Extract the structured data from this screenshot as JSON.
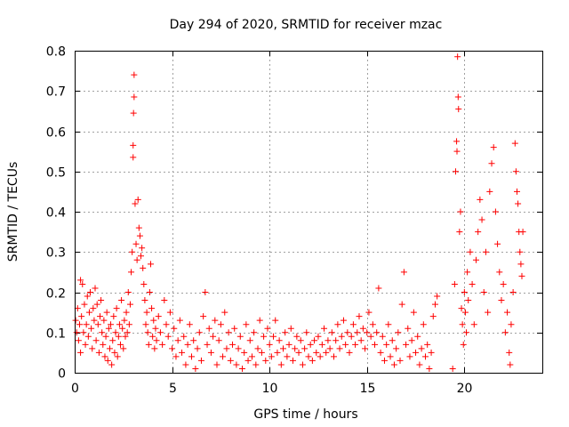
{
  "chart_data": {
    "type": "scatter",
    "title": "Day 294 of 2020, SRMTID for receiver mzac",
    "xlabel": "GPS time / hours",
    "ylabel": "SRMTID / TECUs",
    "xlim": [
      0,
      24
    ],
    "ylim": [
      0,
      0.8
    ],
    "xticks": [
      0,
      5,
      10,
      15,
      20
    ],
    "xtick_labels": [
      "0",
      "5",
      "10",
      "15",
      "20"
    ],
    "yticks": [
      0,
      0.1,
      0.2,
      0.3,
      0.4,
      0.5,
      0.6,
      0.7,
      0.8
    ],
    "ytick_labels": [
      "0",
      "0.1",
      "0.2",
      "0.3",
      "0.4",
      "0.5",
      "0.6",
      "0.7",
      "0.8"
    ],
    "grid": true,
    "marker": "+",
    "color": "#ff0000",
    "series": [
      {
        "name": "SRMTID",
        "points": [
          [
            0.05,
            0.13
          ],
          [
            0.1,
            0.1
          ],
          [
            0.15,
            0.16
          ],
          [
            0.2,
            0.08
          ],
          [
            0.25,
            0.12
          ],
          [
            0.3,
            0.05
          ],
          [
            0.3,
            0.23
          ],
          [
            0.35,
            0.14
          ],
          [
            0.4,
            0.22
          ],
          [
            0.45,
            0.1
          ],
          [
            0.5,
            0.17
          ],
          [
            0.55,
            0.07
          ],
          [
            0.6,
            0.12
          ],
          [
            0.65,
            0.19
          ],
          [
            0.7,
            0.09
          ],
          [
            0.75,
            0.15
          ],
          [
            0.8,
            0.2
          ],
          [
            0.85,
            0.11
          ],
          [
            0.9,
            0.06
          ],
          [
            0.95,
            0.16
          ],
          [
            1.0,
            0.13
          ],
          [
            1.05,
            0.21
          ],
          [
            1.1,
            0.08
          ],
          [
            1.15,
            0.17
          ],
          [
            1.2,
            0.12
          ],
          [
            1.25,
            0.05
          ],
          [
            1.3,
            0.14
          ],
          [
            1.35,
            0.18
          ],
          [
            1.4,
            0.1
          ],
          [
            1.45,
            0.07
          ],
          [
            1.5,
            0.13
          ],
          [
            1.55,
            0.04
          ],
          [
            1.6,
            0.09
          ],
          [
            1.65,
            0.15
          ],
          [
            1.7,
            0.03
          ],
          [
            1.75,
            0.11
          ],
          [
            1.8,
            0.06
          ],
          [
            1.85,
            0.12
          ],
          [
            1.9,
            0.02
          ],
          [
            1.95,
            0.08
          ],
          [
            2.0,
            0.14
          ],
          [
            2.05,
            0.05
          ],
          [
            2.1,
            0.1
          ],
          [
            2.15,
            0.16
          ],
          [
            2.2,
            0.04
          ],
          [
            2.25,
            0.09
          ],
          [
            2.3,
            0.12
          ],
          [
            2.35,
            0.07
          ],
          [
            2.4,
            0.18
          ],
          [
            2.45,
            0.11
          ],
          [
            2.5,
            0.06
          ],
          [
            2.55,
            0.13
          ],
          [
            2.6,
            0.09
          ],
          [
            2.65,
            0.15
          ],
          [
            2.7,
            0.1
          ],
          [
            2.75,
            0.2
          ],
          [
            2.8,
            0.12
          ],
          [
            2.85,
            0.17
          ],
          [
            2.9,
            0.25
          ],
          [
            2.95,
            0.3
          ],
          [
            3.0,
            0.565
          ],
          [
            3.0,
            0.535
          ],
          [
            3.02,
            0.645
          ],
          [
            3.05,
            0.685
          ],
          [
            3.05,
            0.74
          ],
          [
            3.1,
            0.42
          ],
          [
            3.15,
            0.32
          ],
          [
            3.2,
            0.28
          ],
          [
            3.25,
            0.43
          ],
          [
            3.3,
            0.36
          ],
          [
            3.35,
            0.34
          ],
          [
            3.4,
            0.29
          ],
          [
            3.45,
            0.31
          ],
          [
            3.5,
            0.26
          ],
          [
            3.55,
            0.22
          ],
          [
            3.6,
            0.18
          ],
          [
            3.65,
            0.12
          ],
          [
            3.7,
            0.15
          ],
          [
            3.75,
            0.1
          ],
          [
            3.8,
            0.07
          ],
          [
            3.85,
            0.2
          ],
          [
            3.9,
            0.27
          ],
          [
            3.95,
            0.16
          ],
          [
            4.0,
            0.09
          ],
          [
            4.05,
            0.13
          ],
          [
            4.1,
            0.06
          ],
          [
            4.15,
            0.11
          ],
          [
            4.2,
            0.08
          ],
          [
            4.3,
            0.14
          ],
          [
            4.4,
            0.1
          ],
          [
            4.5,
            0.07
          ],
          [
            4.6,
            0.18
          ],
          [
            4.7,
            0.12
          ],
          [
            4.8,
            0.09
          ],
          [
            4.9,
            0.15
          ],
          [
            5.0,
            0.06
          ],
          [
            5.1,
            0.11
          ],
          [
            5.2,
            0.04
          ],
          [
            5.3,
            0.08
          ],
          [
            5.4,
            0.13
          ],
          [
            5.5,
            0.05
          ],
          [
            5.6,
            0.09
          ],
          [
            5.7,
            0.02
          ],
          [
            5.8,
            0.07
          ],
          [
            5.9,
            0.12
          ],
          [
            6.0,
            0.04
          ],
          [
            6.1,
            0.08
          ],
          [
            6.2,
            0.01
          ],
          [
            6.3,
            0.06
          ],
          [
            6.4,
            0.1
          ],
          [
            6.5,
            0.03
          ],
          [
            6.6,
            0.14
          ],
          [
            6.7,
            0.2
          ],
          [
            6.8,
            0.07
          ],
          [
            6.9,
            0.11
          ],
          [
            7.0,
            0.05
          ],
          [
            7.1,
            0.09
          ],
          [
            7.2,
            0.13
          ],
          [
            7.3,
            0.02
          ],
          [
            7.4,
            0.08
          ],
          [
            7.5,
            0.12
          ],
          [
            7.6,
            0.04
          ],
          [
            7.7,
            0.15
          ],
          [
            7.8,
            0.06
          ],
          [
            7.9,
            0.1
          ],
          [
            8.0,
            0.03
          ],
          [
            8.1,
            0.07
          ],
          [
            8.2,
            0.11
          ],
          [
            8.3,
            0.02
          ],
          [
            8.4,
            0.06
          ],
          [
            8.5,
            0.09
          ],
          [
            8.6,
            0.01
          ],
          [
            8.7,
            0.05
          ],
          [
            8.8,
            0.12
          ],
          [
            8.9,
            0.03
          ],
          [
            9.0,
            0.08
          ],
          [
            9.1,
            0.04
          ],
          [
            9.2,
            0.1
          ],
          [
            9.3,
            0.02
          ],
          [
            9.4,
            0.06
          ],
          [
            9.5,
            0.13
          ],
          [
            9.6,
            0.05
          ],
          [
            9.7,
            0.09
          ],
          [
            9.8,
            0.03
          ],
          [
            9.9,
            0.11
          ],
          [
            10.0,
            0.07
          ],
          [
            10.1,
            0.04
          ],
          [
            10.2,
            0.09
          ],
          [
            10.3,
            0.13
          ],
          [
            10.4,
            0.05
          ],
          [
            10.5,
            0.08
          ],
          [
            10.6,
            0.02
          ],
          [
            10.7,
            0.06
          ],
          [
            10.8,
            0.1
          ],
          [
            10.9,
            0.04
          ],
          [
            11.0,
            0.07
          ],
          [
            11.1,
            0.11
          ],
          [
            11.2,
            0.03
          ],
          [
            11.3,
            0.06
          ],
          [
            11.4,
            0.09
          ],
          [
            11.5,
            0.05
          ],
          [
            11.6,
            0.08
          ],
          [
            11.7,
            0.02
          ],
          [
            11.8,
            0.06
          ],
          [
            11.9,
            0.1
          ],
          [
            12.0,
            0.04
          ],
          [
            12.1,
            0.07
          ],
          [
            12.2,
            0.03
          ],
          [
            12.3,
            0.08
          ],
          [
            12.4,
            0.05
          ],
          [
            12.5,
            0.09
          ],
          [
            12.6,
            0.04
          ],
          [
            12.7,
            0.07
          ],
          [
            12.8,
            0.11
          ],
          [
            12.9,
            0.05
          ],
          [
            13.0,
            0.08
          ],
          [
            13.1,
            0.06
          ],
          [
            13.2,
            0.1
          ],
          [
            13.3,
            0.04
          ],
          [
            13.4,
            0.08
          ],
          [
            13.5,
            0.12
          ],
          [
            13.6,
            0.06
          ],
          [
            13.7,
            0.09
          ],
          [
            13.8,
            0.13
          ],
          [
            13.9,
            0.07
          ],
          [
            14.0,
            0.1
          ],
          [
            14.1,
            0.05
          ],
          [
            14.2,
            0.09
          ],
          [
            14.3,
            0.12
          ],
          [
            14.4,
            0.07
          ],
          [
            14.5,
            0.1
          ],
          [
            14.6,
            0.14
          ],
          [
            14.7,
            0.08
          ],
          [
            14.8,
            0.11
          ],
          [
            14.9,
            0.06
          ],
          [
            15.0,
            0.1
          ],
          [
            15.1,
            0.15
          ],
          [
            15.2,
            0.09
          ],
          [
            15.3,
            0.12
          ],
          [
            15.4,
            0.07
          ],
          [
            15.5,
            0.1
          ],
          [
            15.6,
            0.21
          ],
          [
            15.7,
            0.05
          ],
          [
            15.8,
            0.09
          ],
          [
            15.9,
            0.03
          ],
          [
            16.0,
            0.07
          ],
          [
            16.1,
            0.12
          ],
          [
            16.2,
            0.04
          ],
          [
            16.3,
            0.08
          ],
          [
            16.4,
            0.02
          ],
          [
            16.5,
            0.06
          ],
          [
            16.6,
            0.1
          ],
          [
            16.7,
            0.03
          ],
          [
            16.8,
            0.17
          ],
          [
            16.9,
            0.25
          ],
          [
            17.0,
            0.07
          ],
          [
            17.1,
            0.11
          ],
          [
            17.2,
            0.04
          ],
          [
            17.3,
            0.08
          ],
          [
            17.4,
            0.15
          ],
          [
            17.5,
            0.05
          ],
          [
            17.6,
            0.09
          ],
          [
            17.7,
            0.02
          ],
          [
            17.8,
            0.06
          ],
          [
            17.9,
            0.12
          ],
          [
            18.0,
            0.04
          ],
          [
            18.1,
            0.07
          ],
          [
            18.2,
            0.01
          ],
          [
            18.3,
            0.05
          ],
          [
            18.4,
            0.14
          ],
          [
            18.5,
            0.17
          ],
          [
            18.6,
            0.19
          ],
          [
            19.4,
            0.01
          ],
          [
            19.5,
            0.22
          ],
          [
            19.55,
            0.5
          ],
          [
            19.6,
            0.575
          ],
          [
            19.62,
            0.55
          ],
          [
            19.65,
            0.785
          ],
          [
            19.68,
            0.685
          ],
          [
            19.7,
            0.655
          ],
          [
            19.75,
            0.35
          ],
          [
            19.8,
            0.4
          ],
          [
            19.85,
            0.16
          ],
          [
            19.9,
            0.12
          ],
          [
            19.95,
            0.07
          ],
          [
            20.0,
            0.2
          ],
          [
            20.05,
            0.15
          ],
          [
            20.1,
            0.1
          ],
          [
            20.15,
            0.25
          ],
          [
            20.2,
            0.18
          ],
          [
            20.3,
            0.3
          ],
          [
            20.4,
            0.22
          ],
          [
            20.5,
            0.12
          ],
          [
            20.6,
            0.28
          ],
          [
            20.7,
            0.35
          ],
          [
            20.8,
            0.43
          ],
          [
            20.9,
            0.38
          ],
          [
            21.0,
            0.2
          ],
          [
            21.1,
            0.3
          ],
          [
            21.2,
            0.15
          ],
          [
            21.3,
            0.45
          ],
          [
            21.4,
            0.52
          ],
          [
            21.5,
            0.56
          ],
          [
            21.6,
            0.4
          ],
          [
            21.7,
            0.32
          ],
          [
            21.8,
            0.25
          ],
          [
            21.9,
            0.18
          ],
          [
            22.0,
            0.22
          ],
          [
            22.1,
            0.1
          ],
          [
            22.2,
            0.15
          ],
          [
            22.3,
            0.05
          ],
          [
            22.35,
            0.02
          ],
          [
            22.4,
            0.12
          ],
          [
            22.5,
            0.2
          ],
          [
            22.6,
            0.57
          ],
          [
            22.65,
            0.5
          ],
          [
            22.7,
            0.45
          ],
          [
            22.75,
            0.42
          ],
          [
            22.8,
            0.35
          ],
          [
            22.85,
            0.3
          ],
          [
            22.9,
            0.27
          ],
          [
            22.95,
            0.24
          ],
          [
            23.0,
            0.35
          ]
        ]
      }
    ]
  }
}
